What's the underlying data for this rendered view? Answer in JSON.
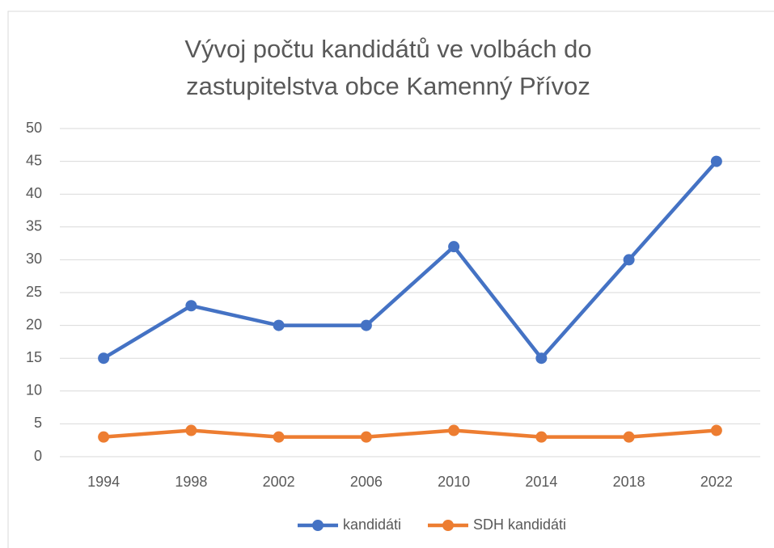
{
  "chart_data": {
    "type": "line",
    "title": "Vývoj počtu kandidátů ve volbách do zastupitelstva obce Kamenný Přívoz",
    "categories": [
      "1994",
      "1998",
      "2002",
      "2006",
      "2010",
      "2014",
      "2018",
      "2022"
    ],
    "series": [
      {
        "name": "kandidáti",
        "color": "#4472c4",
        "values": [
          15,
          23,
          20,
          20,
          32,
          15,
          30,
          45
        ]
      },
      {
        "name": "SDH kandidáti",
        "color": "#ed7d31",
        "values": [
          3,
          4,
          3,
          3,
          4,
          3,
          3,
          4
        ]
      }
    ],
    "ylim": [
      0,
      50
    ],
    "yticks": [
      0,
      5,
      10,
      15,
      20,
      25,
      30,
      35,
      40,
      45,
      50
    ],
    "grid": true,
    "legend": "bottom"
  }
}
